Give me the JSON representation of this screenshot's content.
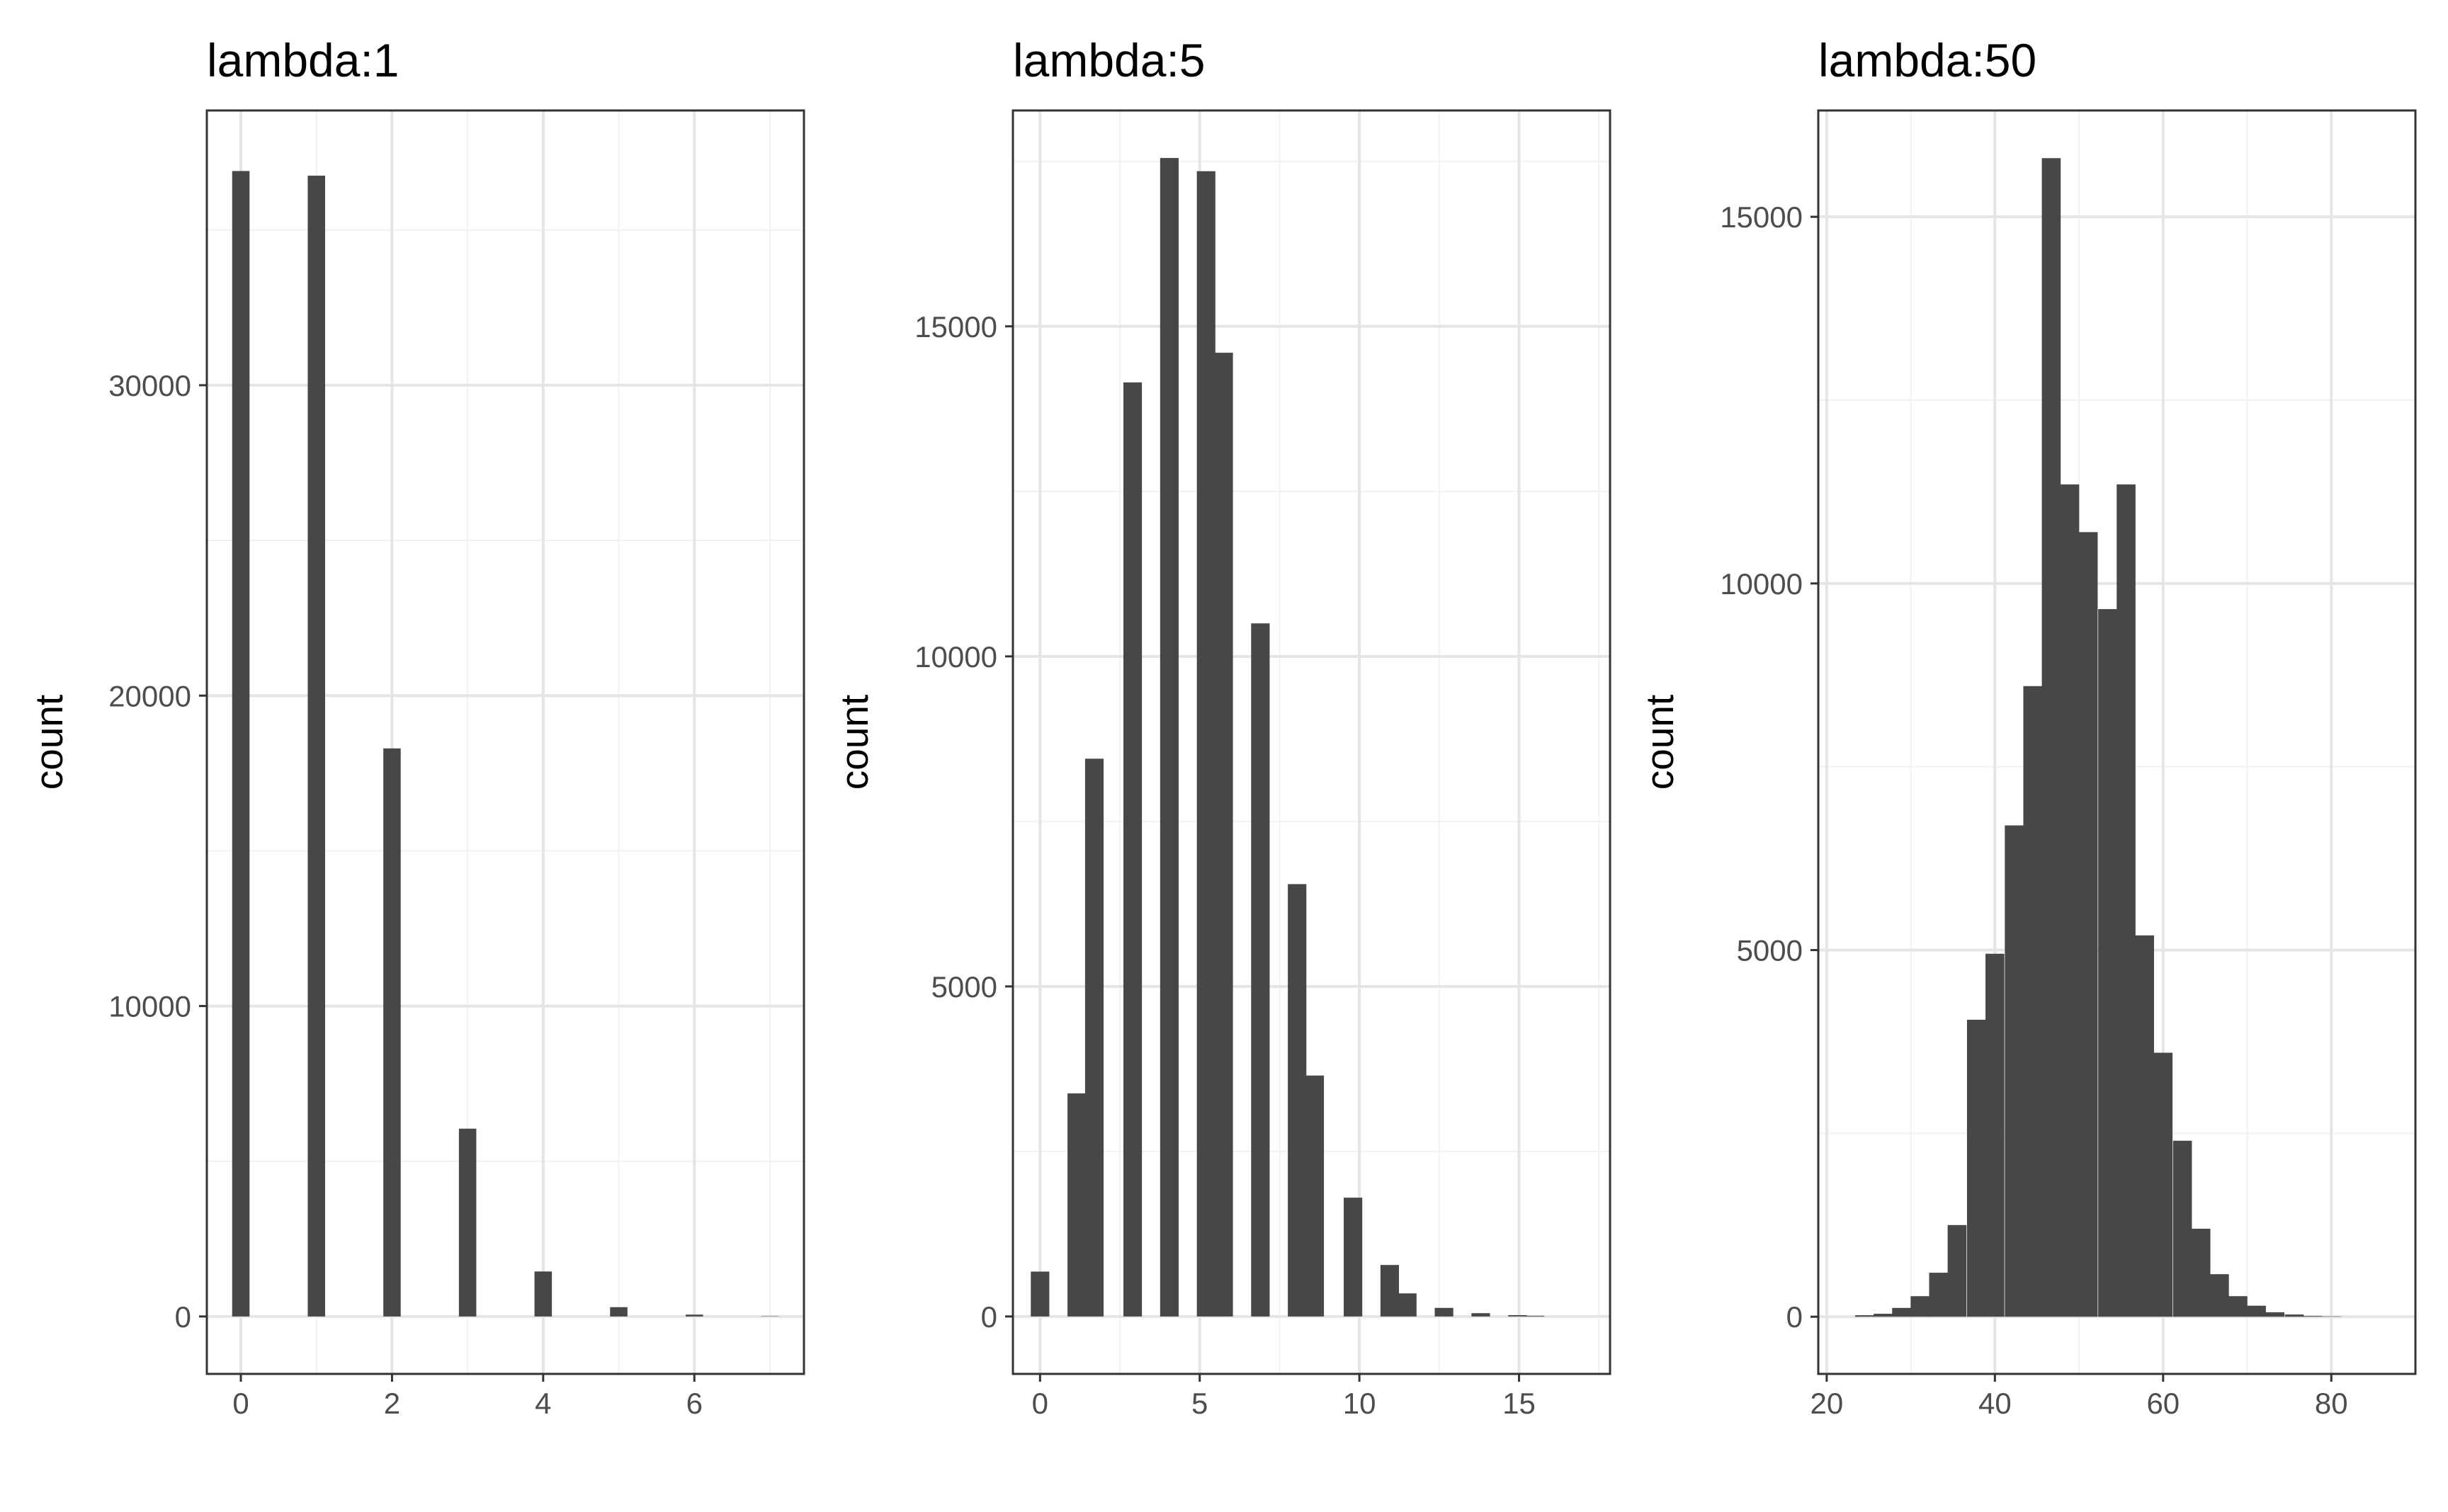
{
  "colors": {
    "bar_fill": "#474747",
    "panel_border": "#333333",
    "grid_major": "#e5e5e5",
    "grid_minor": "#f2f2f2",
    "tick_text": "#4d4d4d",
    "background": "#ffffff"
  },
  "chart_data": [
    {
      "type": "bar",
      "title": "lambda:1",
      "xlabel": "",
      "ylabel": "count",
      "xlim": [
        -0.45,
        7.45
      ],
      "ylim": [
        -1850,
        38850
      ],
      "x_ticks": [
        0,
        2,
        4,
        6
      ],
      "y_ticks": [
        0,
        10000,
        20000,
        30000
      ],
      "x_minor_ticks": [
        1,
        3,
        5,
        7
      ],
      "y_minor_ticks": [
        5000,
        15000,
        25000,
        35000
      ],
      "grid": true,
      "bin_width": 0.23,
      "bins": [
        {
          "x": 0,
          "count": 36900
        },
        {
          "x": 1,
          "count": 36750
        },
        {
          "x": 2,
          "count": 18300
        },
        {
          "x": 3,
          "count": 6050
        },
        {
          "x": 4,
          "count": 1450
        },
        {
          "x": 5,
          "count": 300
        },
        {
          "x": 6,
          "count": 60
        },
        {
          "x": 7,
          "count": 10
        }
      ]
    },
    {
      "type": "bar",
      "title": "lambda:5",
      "xlabel": "",
      "ylabel": "count",
      "xlim": [
        -0.85,
        17.85
      ],
      "ylim": [
        -870,
        18270
      ],
      "x_ticks": [
        0,
        5,
        10,
        15
      ],
      "y_ticks": [
        0,
        5000,
        10000,
        15000
      ],
      "x_minor_ticks": [
        2.5,
        7.5,
        12.5,
        17.5
      ],
      "y_minor_ticks": [
        2500,
        7500,
        12500,
        17500
      ],
      "grid": true,
      "bin_width": 0.58,
      "bins": [
        {
          "x": 0,
          "count": 680
        },
        {
          "x": 1.15,
          "count": 3380
        },
        {
          "x": 1.7,
          "count": 8450
        },
        {
          "x": 2.9,
          "count": 14150
        },
        {
          "x": 4.05,
          "count": 17550
        },
        {
          "x": 5.2,
          "count": 17350
        },
        {
          "x": 5.75,
          "count": 14600
        },
        {
          "x": 6.9,
          "count": 10500
        },
        {
          "x": 8.05,
          "count": 6550
        },
        {
          "x": 8.6,
          "count": 3650
        },
        {
          "x": 9.8,
          "count": 1800
        },
        {
          "x": 10.95,
          "count": 780
        },
        {
          "x": 11.5,
          "count": 350
        },
        {
          "x": 12.65,
          "count": 130
        },
        {
          "x": 13.8,
          "count": 50
        },
        {
          "x": 14.95,
          "count": 20
        },
        {
          "x": 15.5,
          "count": 10
        }
      ]
    },
    {
      "type": "bar",
      "title": "lambda:50",
      "xlabel": "",
      "ylabel": "count",
      "xlim": [
        19,
        90
      ],
      "ylim": [
        -780,
        16450
      ],
      "x_ticks": [
        20,
        40,
        60,
        80
      ],
      "y_ticks": [
        0,
        5000,
        10000,
        15000
      ],
      "x_minor_ticks": [
        30,
        50,
        70,
        90
      ],
      "y_minor_ticks": [
        2500,
        7500,
        12500
      ],
      "grid": true,
      "bin_width": 2.24,
      "bins": [
        {
          "x": 24.5,
          "count": 20
        },
        {
          "x": 26.7,
          "count": 40
        },
        {
          "x": 28.9,
          "count": 120
        },
        {
          "x": 31.1,
          "count": 280
        },
        {
          "x": 33.3,
          "count": 600
        },
        {
          "x": 35.5,
          "count": 1250
        },
        {
          "x": 37.8,
          "count": 4050
        },
        {
          "x": 40.0,
          "count": 4950
        },
        {
          "x": 42.3,
          "count": 6700
        },
        {
          "x": 44.5,
          "count": 8600
        },
        {
          "x": 46.7,
          "count": 15800
        },
        {
          "x": 48.9,
          "count": 11350
        },
        {
          "x": 51.1,
          "count": 10700
        },
        {
          "x": 53.4,
          "count": 9650
        },
        {
          "x": 55.6,
          "count": 11350
        },
        {
          "x": 57.8,
          "count": 5200
        },
        {
          "x": 60.0,
          "count": 3600
        },
        {
          "x": 62.3,
          "count": 2400
        },
        {
          "x": 64.5,
          "count": 1200
        },
        {
          "x": 66.7,
          "count": 580
        },
        {
          "x": 68.9,
          "count": 280
        },
        {
          "x": 71.1,
          "count": 150
        },
        {
          "x": 73.3,
          "count": 60
        },
        {
          "x": 75.6,
          "count": 30
        },
        {
          "x": 77.8,
          "count": 10
        },
        {
          "x": 80.0,
          "count": 5
        }
      ]
    }
  ]
}
